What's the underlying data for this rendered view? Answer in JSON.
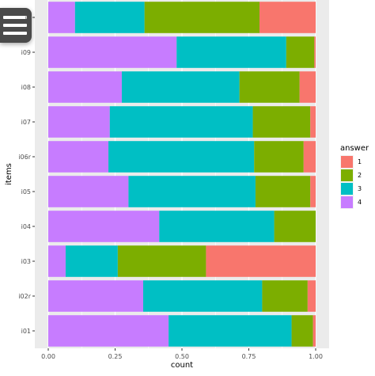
{
  "menu": {
    "icon": "hamburger-menu-icon"
  },
  "chart_data": {
    "type": "bar",
    "orientation": "horizontal",
    "stacked": true,
    "categories": [
      "i0",
      "i09",
      "i08",
      "i07",
      "i06r",
      "i05",
      "i04",
      "i03",
      "i02r",
      "i01"
    ],
    "series": [
      {
        "name": "4",
        "color": "#C77CFF",
        "values": [
          0.1,
          0.48,
          0.275,
          0.23,
          0.225,
          0.3,
          0.415,
          0.065,
          0.355,
          0.45
        ]
      },
      {
        "name": "3",
        "color": "#00BFC4",
        "values": [
          0.26,
          0.41,
          0.44,
          0.535,
          0.545,
          0.475,
          0.43,
          0.195,
          0.445,
          0.46
        ]
      },
      {
        "name": "2",
        "color": "#7CAE00",
        "values": [
          0.43,
          0.105,
          0.225,
          0.215,
          0.185,
          0.205,
          0.155,
          0.33,
          0.17,
          0.08
        ]
      },
      {
        "name": "1",
        "color": "#F8766D",
        "values": [
          0.21,
          0.005,
          0.06,
          0.02,
          0.045,
          0.02,
          0.0,
          0.41,
          0.03,
          0.01
        ]
      }
    ],
    "stack_order_left_to_right": [
      "4",
      "3",
      "2",
      "1"
    ],
    "xlabel": "count",
    "ylabel": "items",
    "xlim": [
      0,
      1
    ],
    "xticks": [
      "0.00",
      "0.25",
      "0.50",
      "0.75",
      "1.00"
    ],
    "legend": {
      "title": "answer",
      "placement": "right",
      "entries": [
        "1",
        "2",
        "3",
        "4"
      ]
    },
    "grid": true,
    "background": "#EBEBEB"
  }
}
